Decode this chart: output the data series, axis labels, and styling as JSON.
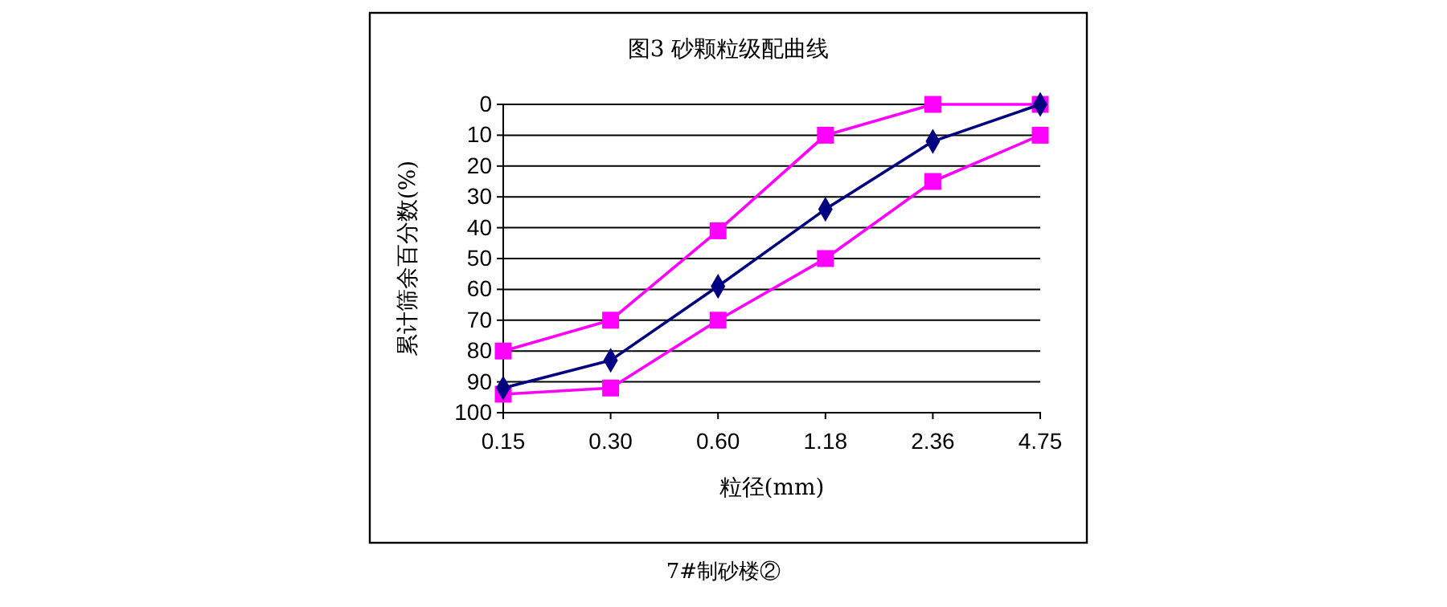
{
  "chart_data": {
    "type": "line",
    "title": "图3  砂颗粒级配曲线",
    "xlabel": "粒径(mm)",
    "ylabel": "累计筛余百分数(%)",
    "categories": [
      "0.15",
      "0.30",
      "0.60",
      "1.18",
      "2.36",
      "4.75"
    ],
    "ylim": [
      100,
      0
    ],
    "yticks": [
      0,
      10,
      20,
      30,
      40,
      50,
      60,
      70,
      80,
      90,
      100
    ],
    "grid": "y",
    "series": [
      {
        "color": "#ff00ff",
        "marker": "square",
        "values": [
          80,
          70,
          41,
          10,
          0,
          0
        ]
      },
      {
        "color": "#ff00ff",
        "marker": "square",
        "values": [
          94,
          92,
          70,
          50,
          25,
          10
        ]
      },
      {
        "color": "#000080",
        "marker": "diamond",
        "values": [
          92,
          83,
          59,
          34,
          12,
          0
        ]
      }
    ],
    "annotations": [
      "7#制砂楼②"
    ]
  }
}
